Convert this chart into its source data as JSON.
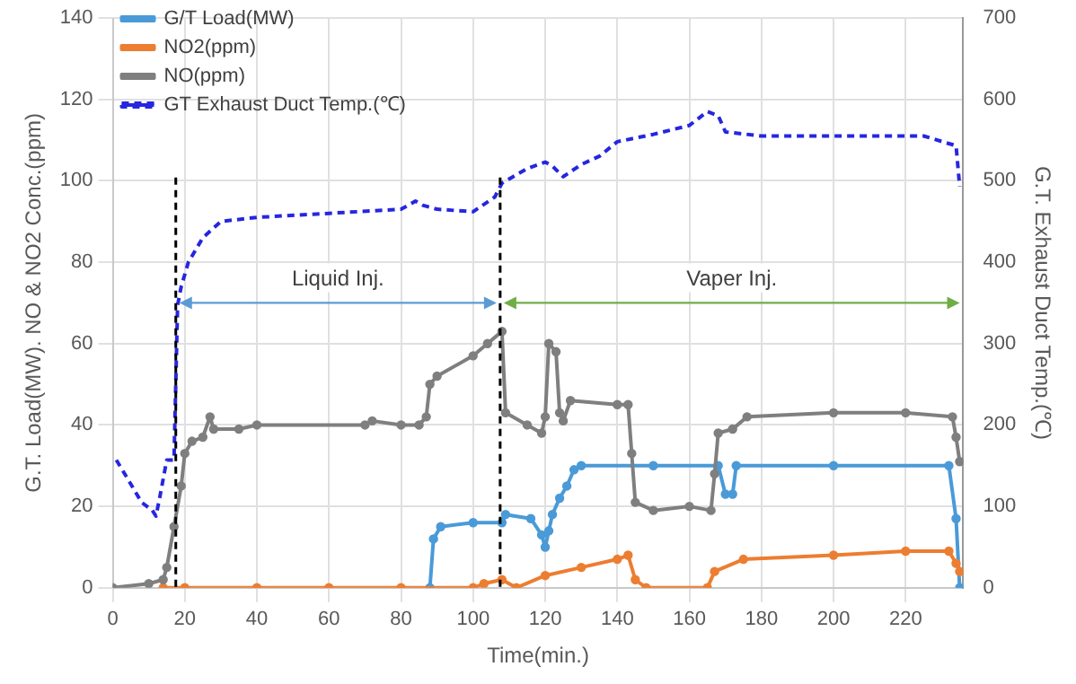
{
  "chart_data": {
    "type": "line",
    "xlabel": "Time(min.)",
    "ylabel": "G.T. Load(MW). NO & NO2 Conc.(ppm)",
    "y2label": "G.T. Exhaust Duct Temp.(℃)",
    "xlim": [
      0,
      236
    ],
    "xticks": [
      0,
      20,
      40,
      60,
      80,
      100,
      120,
      140,
      160,
      180,
      200,
      220
    ],
    "ylim": [
      0,
      140
    ],
    "yticks": [
      0,
      20,
      40,
      60,
      80,
      100,
      120,
      140
    ],
    "y2lim": [
      0,
      700
    ],
    "y2ticks": [
      0,
      100,
      200,
      300,
      400,
      500,
      600,
      700
    ],
    "grid": true,
    "legend": "top left",
    "marker": "circle",
    "series": [
      {
        "name": "G/T Load(MW)",
        "color": "#4a9ad8",
        "x": [
          88,
          89,
          91,
          100,
          108,
          109,
          116,
          119,
          120,
          121,
          122,
          124,
          126,
          128,
          130,
          150,
          168,
          170,
          172,
          173,
          200,
          232,
          234,
          235
        ],
        "values": [
          0,
          12,
          15,
          16,
          16,
          18,
          17,
          13,
          10,
          14,
          18,
          22,
          25,
          29,
          30,
          30,
          30,
          23,
          23,
          30,
          30,
          30,
          17,
          0
        ]
      },
      {
        "name": "NO2(ppm)",
        "color": "#ed7d31",
        "x": [
          14,
          20,
          40,
          60,
          80,
          100,
          103,
          108,
          112,
          120,
          130,
          140,
          143,
          145,
          148,
          165,
          167,
          175,
          200,
          220,
          232,
          234,
          235
        ],
        "values": [
          0,
          0,
          0,
          0,
          0,
          0,
          1,
          2,
          0,
          3,
          5,
          7,
          8,
          2,
          0,
          0,
          4,
          7,
          8,
          9,
          9,
          6,
          4
        ]
      },
      {
        "name": "NO(ppm)",
        "color": "#7f7f7f",
        "x": [
          0,
          10,
          14,
          15,
          17,
          19,
          20,
          22,
          25,
          27,
          28,
          35,
          40,
          70,
          72,
          80,
          85,
          87,
          88,
          90,
          100,
          104,
          108,
          109,
          115,
          119,
          120,
          121,
          123,
          124,
          125,
          127,
          140,
          143,
          144,
          145,
          150,
          160,
          166,
          167,
          168,
          172,
          176,
          200,
          220,
          233,
          234,
          235
        ],
        "values": [
          0,
          1,
          2,
          5,
          15,
          25,
          33,
          36,
          37,
          42,
          39,
          39,
          40,
          40,
          41,
          40,
          40,
          42,
          50,
          52,
          57,
          60,
          63,
          43,
          40,
          38,
          42,
          60,
          58,
          43,
          41,
          46,
          45,
          45,
          33,
          21,
          19,
          20,
          19,
          28,
          38,
          39,
          42,
          43,
          43,
          42,
          37,
          31
        ]
      },
      {
        "name": "GT Exhaust Duct Temp.(℃)",
        "color": "#2626e0",
        "axis": "y2",
        "marker": "none",
        "line_style": "dashed",
        "x": [
          1,
          4,
          8,
          11,
          12,
          13,
          15,
          17,
          18,
          19,
          21,
          25,
          30,
          40,
          60,
          80,
          84,
          86,
          90,
          100,
          106,
          108,
          115,
          120,
          122,
          125,
          130,
          135,
          140,
          150,
          160,
          165,
          168,
          170,
          180,
          200,
          225,
          234,
          235
        ],
        "values": [
          157,
          135,
          105,
          95,
          88,
          110,
          157,
          157,
          347,
          370,
          400,
          430,
          450,
          455,
          460,
          465,
          475,
          470,
          465,
          462,
          480,
          497,
          515,
          523,
          518,
          505,
          520,
          530,
          548,
          557,
          568,
          585,
          580,
          560,
          555,
          555,
          555,
          543,
          493
        ]
      }
    ],
    "ref_lines": [
      {
        "axis": "x",
        "value": 17.5,
        "color": "#000000",
        "line_style": "dashed"
      },
      {
        "axis": "x",
        "value": 107.5,
        "color": "#000000",
        "line_style": "dashed"
      }
    ],
    "annotations": [
      "Liquid Inj.",
      "Vaper Inj."
    ]
  }
}
